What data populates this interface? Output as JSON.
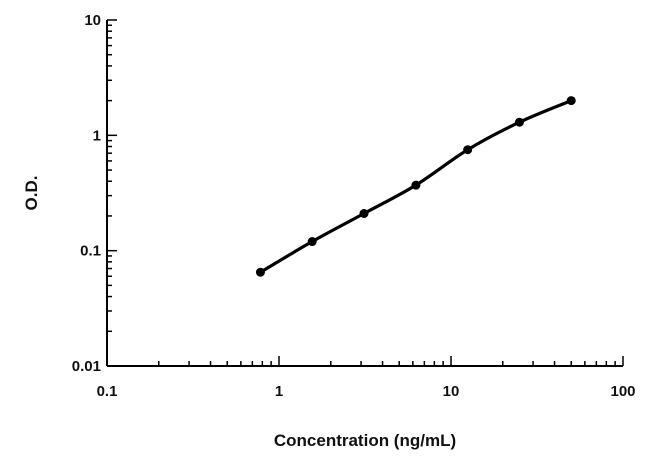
{
  "chart_data": {
    "type": "scatter",
    "title": "",
    "xlabel": "Concentration (ng/mL)",
    "ylabel": "O.D.",
    "xscale": "log",
    "yscale": "log",
    "xlim": [
      0.1,
      100
    ],
    "ylim": [
      0.01,
      10
    ],
    "x_ticks": [
      0.1,
      1,
      10,
      100
    ],
    "x_tick_labels": [
      "0.1",
      "1",
      "10",
      "100"
    ],
    "y_ticks": [
      0.01,
      0.1,
      1,
      10
    ],
    "y_tick_labels": [
      "0.01",
      "0.1",
      "1",
      "10"
    ],
    "grid": false,
    "legend": "none",
    "series": [
      {
        "x": [
          0.78,
          1.56,
          3.12,
          6.25,
          12.5,
          25,
          50
        ],
        "y": [
          0.065,
          0.12,
          0.21,
          0.37,
          0.75,
          1.3,
          2.0
        ],
        "fit_curve": true,
        "color": "#000000"
      }
    ]
  }
}
